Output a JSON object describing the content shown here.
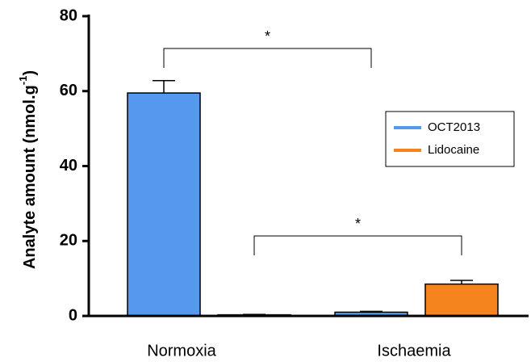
{
  "chart_data": {
    "type": "bar",
    "y_label": [
      "Analyte amount (nmol.g",
      "-1",
      ")"
    ],
    "categories": [
      "Normoxia",
      "Ischaemia"
    ],
    "series": [
      {
        "name": "OCT2013",
        "color": "#5599ee",
        "values": [
          59.5,
          1.0
        ],
        "errors": [
          3.3,
          0.2
        ]
      },
      {
        "name": "Lidocaine",
        "color": "#f5841f",
        "values": [
          0.3,
          8.5
        ],
        "errors": [
          0.1,
          1.0
        ]
      }
    ],
    "ylim": [
      0,
      80
    ],
    "yticks": [
      0,
      20,
      40,
      60,
      80
    ],
    "annotations": [
      "*",
      "*"
    ],
    "legend": "right"
  }
}
